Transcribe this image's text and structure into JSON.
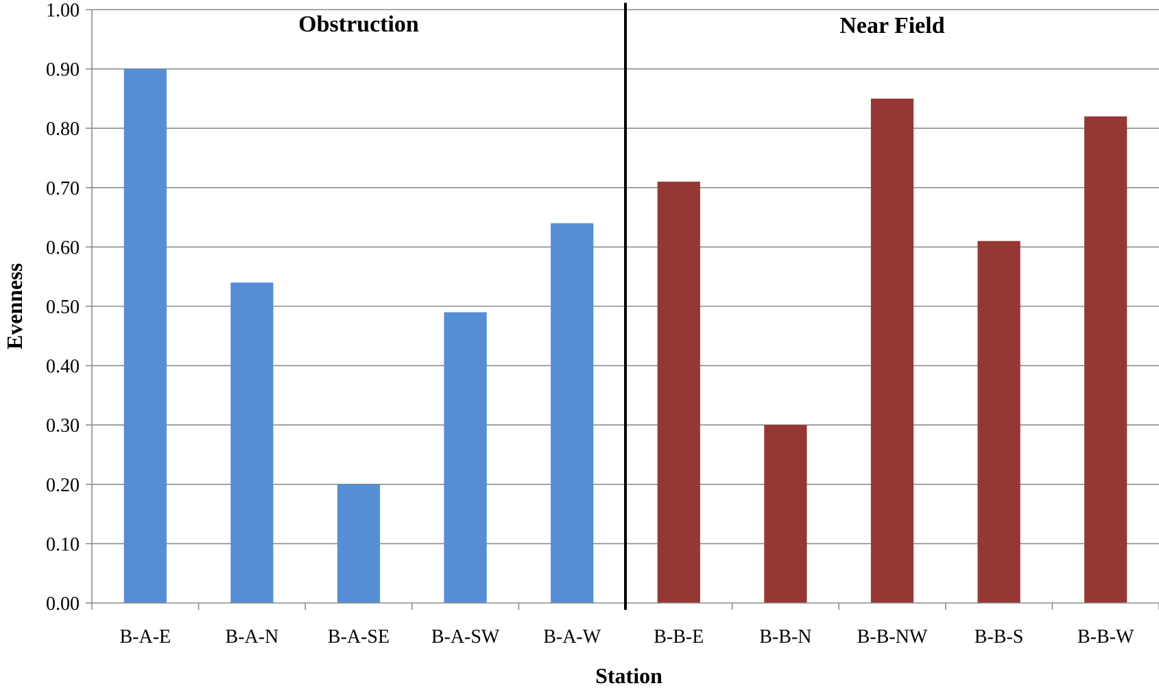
{
  "chart_data": {
    "type": "bar",
    "categories": [
      "B-A-E",
      "B-A-N",
      "B-A-SE",
      "B-A-SW",
      "B-A-W",
      "B-B-E",
      "B-B-N",
      "B-B-NW",
      "B-B-S",
      "B-B-W"
    ],
    "values": [
      0.9,
      0.54,
      0.2,
      0.49,
      0.64,
      0.71,
      0.3,
      0.85,
      0.61,
      0.82
    ],
    "bar_colors": [
      "#558ed5",
      "#558ed5",
      "#558ed5",
      "#558ed5",
      "#558ed5",
      "#953735",
      "#953735",
      "#953735",
      "#953735",
      "#953735"
    ],
    "groups": [
      {
        "label": "Obstruction",
        "color": "#558ed5"
      },
      {
        "label": "Near Field",
        "color": "#953735"
      }
    ],
    "xlabel": "Station",
    "ylabel": "Evenness",
    "ylim": [
      0,
      1.0
    ],
    "yticks": [
      "0.00",
      "0.10",
      "0.20",
      "0.30",
      "0.40",
      "0.50",
      "0.60",
      "0.70",
      "0.80",
      "0.90",
      "1.00"
    ],
    "grid": true,
    "divider_color": "#000000"
  }
}
